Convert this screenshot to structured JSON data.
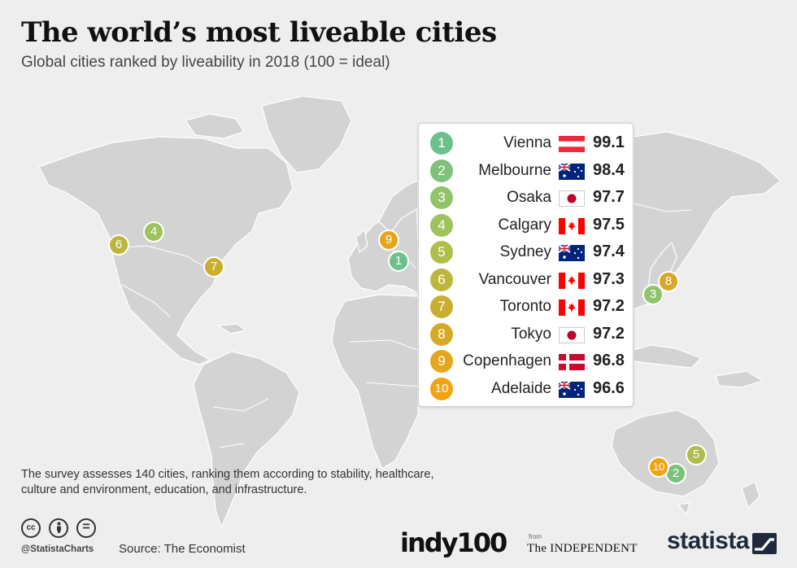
{
  "header": {
    "title": "The world’s most liveable cities",
    "subtitle": "Global cities ranked by liveability in 2018 (100 = ideal)"
  },
  "colors": {
    "rank_1": "#6cc08b",
    "rank_2": "#7dc17a",
    "rank_3": "#8fc46a",
    "rank_4": "#9ec35b",
    "rank_5": "#aebd4b",
    "rank_6": "#bcb63d",
    "rank_7": "#c9ae32",
    "rank_8": "#d8a926",
    "rank_9": "#e5a61c",
    "rank_10": "#efa414",
    "land": "#d3d3d3",
    "background": "#eeeeee"
  },
  "rankings": [
    {
      "rank": "1",
      "city": "Vienna",
      "country": "Austria",
      "flag": "austria-flag-icon",
      "score": "99.1"
    },
    {
      "rank": "2",
      "city": "Melbourne",
      "country": "Australia",
      "flag": "australia-flag-icon",
      "score": "98.4"
    },
    {
      "rank": "3",
      "city": "Osaka",
      "country": "Japan",
      "flag": "japan-flag-icon",
      "score": "97.7"
    },
    {
      "rank": "4",
      "city": "Calgary",
      "country": "Canada",
      "flag": "canada-flag-icon",
      "score": "97.5"
    },
    {
      "rank": "5",
      "city": "Sydney",
      "country": "Australia",
      "flag": "australia-flag-icon",
      "score": "97.4"
    },
    {
      "rank": "6",
      "city": "Vancouver",
      "country": "Canada",
      "flag": "canada-flag-icon",
      "score": "97.3"
    },
    {
      "rank": "7",
      "city": "Toronto",
      "country": "Canada",
      "flag": "canada-flag-icon",
      "score": "97.2"
    },
    {
      "rank": "8",
      "city": "Tokyo",
      "country": "Japan",
      "flag": "japan-flag-icon",
      "score": "97.2"
    },
    {
      "rank": "9",
      "city": "Copenhagen",
      "country": "Denmark",
      "flag": "denmark-flag-icon",
      "score": "96.8"
    },
    {
      "rank": "10",
      "city": "Adelaide",
      "country": "Australia",
      "flag": "australia-flag-icon",
      "score": "96.6"
    }
  ],
  "footer": {
    "note": "The survey assesses 140 cities,  ranking them according to stability, healthcare, culture and environment, education, and infrastructure.",
    "handle": "@StatistaCharts",
    "source": "Source: The Economist",
    "cc_icons": [
      "cc",
      "by",
      "="
    ],
    "indy_logo": "indy100",
    "from": "from",
    "independent_logo": "The INDEPENDENT",
    "statista_logo": "statista"
  }
}
